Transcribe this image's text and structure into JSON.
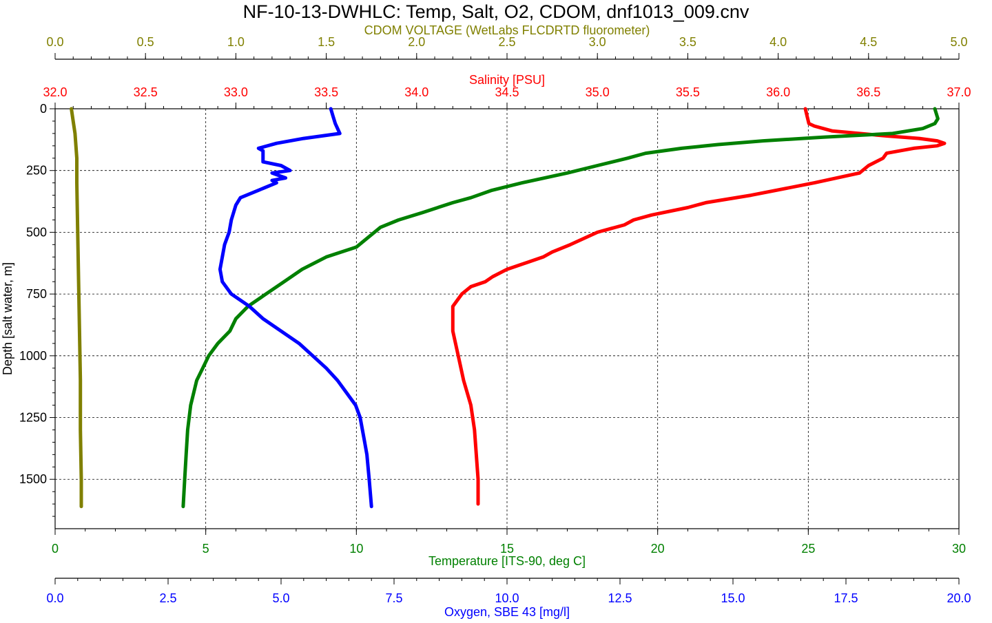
{
  "chart_data": {
    "type": "line",
    "title": "NF-10-13-DWHLC: Temp, Salt, O2, CDOM, dnf1013_009.cnv",
    "y_axis": {
      "label": "Depth [salt water, m]",
      "ticks": [
        "0",
        "250",
        "500",
        "750",
        "1000",
        "1250",
        "1500"
      ],
      "range": [
        0,
        1700
      ],
      "inverted": true,
      "grid": true
    },
    "x_axes": [
      {
        "id": "cdom",
        "label": "CDOM VOLTAGE (WetLabs FLCDRTD fluorometer)",
        "color": "#808000",
        "position": "top",
        "range": [
          0,
          5
        ],
        "ticks": [
          "0.0",
          "0.5",
          "1.0",
          "1.5",
          "2.0",
          "2.5",
          "3.0",
          "3.5",
          "4.0",
          "4.5",
          "5.0"
        ]
      },
      {
        "id": "salinity",
        "label": "Salinity [PSU]",
        "color": "#ff0000",
        "position": "top",
        "range": [
          32,
          37
        ],
        "ticks": [
          "32.0",
          "32.5",
          "33.0",
          "33.5",
          "34.0",
          "34.5",
          "35.0",
          "35.5",
          "36.0",
          "36.5",
          "37.0"
        ]
      },
      {
        "id": "temperature",
        "label": "Temperature [ITS-90, deg C]",
        "color": "#008000",
        "position": "bottom",
        "range": [
          0,
          30
        ],
        "ticks": [
          "0",
          "5",
          "10",
          "15",
          "20",
          "25",
          "30"
        ]
      },
      {
        "id": "oxygen",
        "label": "Oxygen, SBE 43 [mg/l]",
        "color": "#0000ff",
        "position": "bottom",
        "range": [
          0,
          20
        ],
        "ticks": [
          "0.0",
          "2.5",
          "5.0",
          "7.5",
          "10.0",
          "12.5",
          "15.0",
          "17.5",
          "20.0"
        ]
      }
    ],
    "series": [
      {
        "axis": "cdom",
        "color": "#808000",
        "depth": [
          0,
          50,
          100,
          150,
          200,
          300,
          500,
          700,
          900,
          1100,
          1300,
          1500,
          1610
        ],
        "values": [
          0.09,
          0.1,
          0.11,
          0.115,
          0.12,
          0.12,
          0.125,
          0.13,
          0.135,
          0.14,
          0.14,
          0.145,
          0.145
        ]
      },
      {
        "axis": "salinity",
        "color": "#ff0000",
        "depth": [
          0,
          30,
          60,
          70,
          90,
          100,
          110,
          120,
          130,
          140,
          150,
          160,
          180,
          200,
          230,
          260,
          300,
          350,
          380,
          400,
          430,
          450,
          470,
          500,
          550,
          580,
          600,
          650,
          680,
          700,
          720,
          750,
          800,
          900,
          1000,
          1100,
          1200,
          1300,
          1400,
          1500,
          1600
        ],
        "values": [
          36.15,
          36.16,
          36.17,
          36.2,
          36.3,
          36.45,
          36.6,
          36.78,
          36.88,
          36.92,
          36.88,
          36.75,
          36.6,
          36.58,
          36.5,
          36.45,
          36.2,
          35.85,
          35.6,
          35.5,
          35.3,
          35.2,
          35.15,
          35.0,
          34.85,
          34.75,
          34.7,
          34.5,
          34.42,
          34.38,
          34.3,
          34.25,
          34.2,
          34.2,
          34.23,
          34.26,
          34.3,
          34.32,
          34.33,
          34.34,
          34.34
        ]
      },
      {
        "axis": "temperature",
        "color": "#008000",
        "depth": [
          0,
          20,
          40,
          60,
          80,
          100,
          115,
          130,
          145,
          160,
          180,
          200,
          230,
          260,
          300,
          330,
          360,
          380,
          420,
          450,
          480,
          520,
          560,
          600,
          650,
          700,
          750,
          800,
          850,
          900,
          950,
          1000,
          1050,
          1100,
          1150,
          1200,
          1250,
          1300,
          1400,
          1500,
          1610
        ],
        "values": [
          29.2,
          29.25,
          29.3,
          29.2,
          28.8,
          27.8,
          25.5,
          23.5,
          22.0,
          20.8,
          19.6,
          19.0,
          18.0,
          17.0,
          15.5,
          14.5,
          13.8,
          13.2,
          12.2,
          11.4,
          10.8,
          10.4,
          10.0,
          9.0,
          8.2,
          7.6,
          7.0,
          6.4,
          6.0,
          5.8,
          5.4,
          5.1,
          4.9,
          4.7,
          4.6,
          4.5,
          4.45,
          4.4,
          4.35,
          4.3,
          4.25
        ]
      },
      {
        "axis": "oxygen",
        "color": "#0000ff",
        "depth": [
          0,
          30,
          60,
          80,
          100,
          120,
          140,
          160,
          170,
          185,
          200,
          215,
          230,
          250,
          260,
          280,
          290,
          300,
          330,
          360,
          390,
          420,
          450,
          500,
          550,
          600,
          650,
          700,
          750,
          800,
          850,
          900,
          950,
          1000,
          1050,
          1100,
          1150,
          1200,
          1250,
          1300,
          1350,
          1400,
          1500,
          1610
        ],
        "values": [
          6.1,
          6.15,
          6.2,
          6.25,
          6.3,
          5.5,
          4.9,
          4.5,
          4.6,
          4.6,
          4.6,
          4.6,
          5.0,
          5.2,
          4.8,
          5.1,
          4.8,
          4.9,
          4.5,
          4.1,
          4.0,
          3.95,
          3.9,
          3.85,
          3.75,
          3.7,
          3.65,
          3.7,
          3.9,
          4.3,
          4.6,
          5.0,
          5.4,
          5.7,
          6.0,
          6.25,
          6.45,
          6.65,
          6.75,
          6.8,
          6.85,
          6.9,
          6.95,
          7.0
        ]
      }
    ]
  }
}
